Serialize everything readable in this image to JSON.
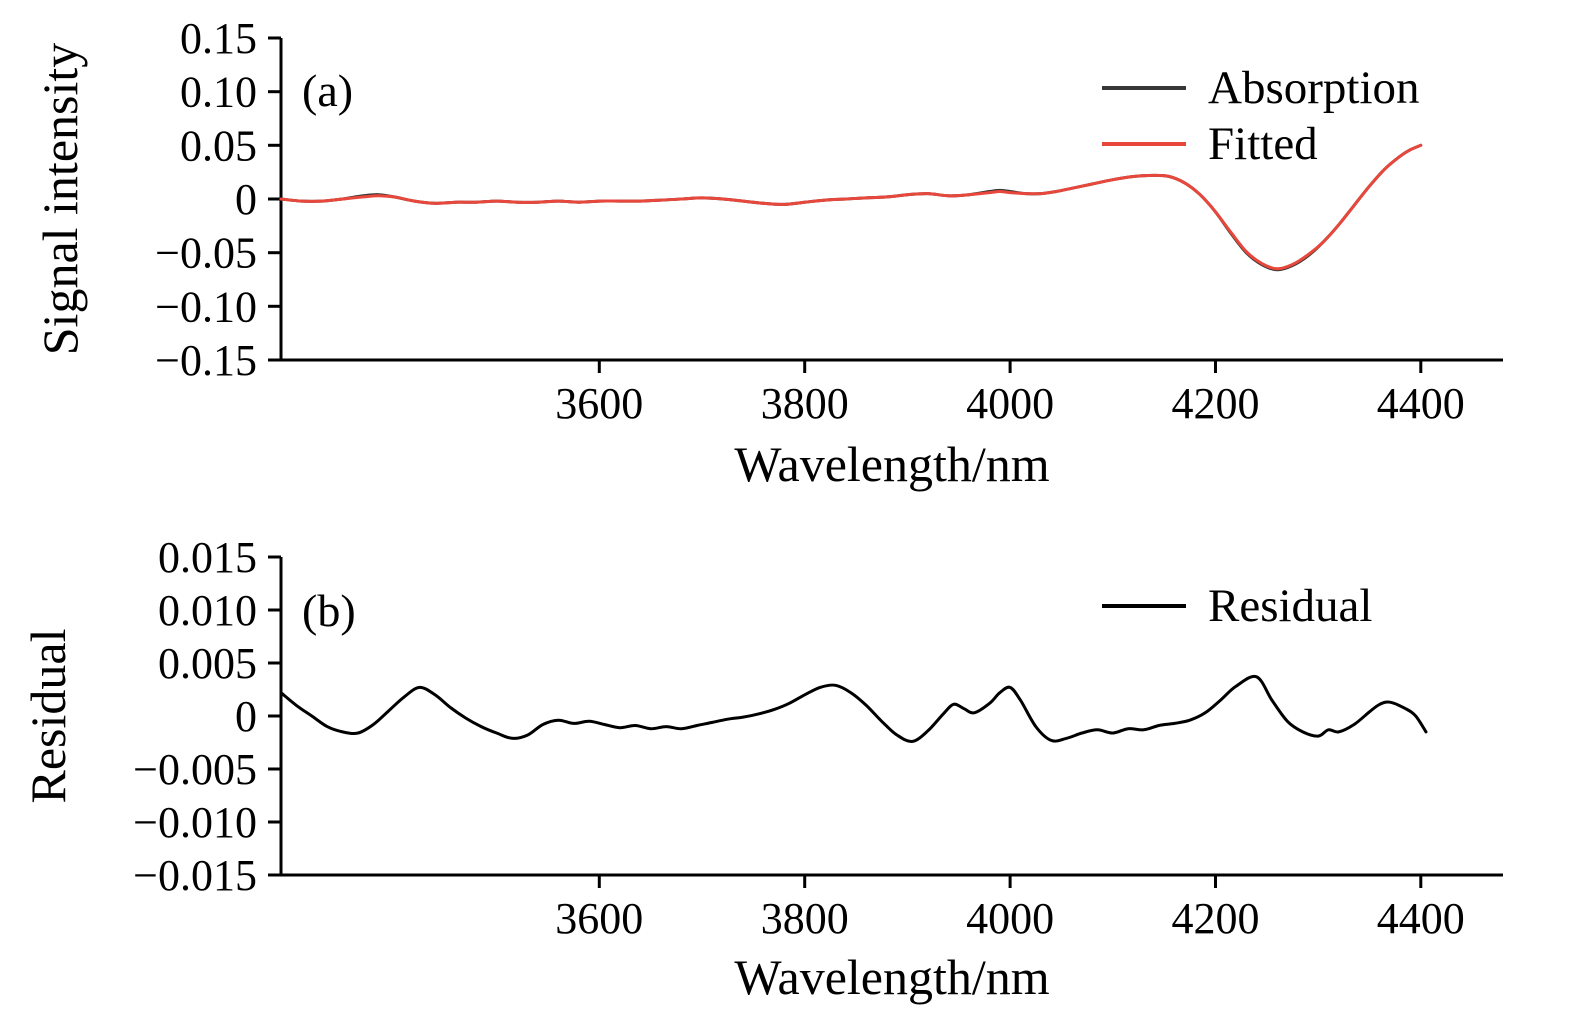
{
  "page": {
    "background": "#ffffff"
  },
  "chart_data": [
    {
      "type": "line",
      "name": "absorption-panel",
      "panel_label": "(a)",
      "xlabel": "Wavelength/nm",
      "ylabel": "Signal intensity",
      "xlim": [
        3290,
        4480
      ],
      "ylim": [
        -0.15,
        0.15
      ],
      "grid": false,
      "xticks": [
        3600,
        3800,
        4000,
        4200,
        4400
      ],
      "xtick_labels": [
        "3600",
        "3800",
        "4000",
        "4200",
        "4400"
      ],
      "yticks": [
        0.15,
        0.1,
        0.05,
        0,
        -0.05,
        -0.1,
        -0.15
      ],
      "ytick_labels": [
        "0.15",
        "0.10",
        "0.05",
        "0",
        "−0.05",
        "−0.10",
        "−0.15"
      ],
      "legend": {
        "position": "top-right",
        "entries": [
          {
            "label": "Absorption",
            "color": "#373737"
          },
          {
            "label": "Fitted",
            "color": "#e8473c"
          }
        ]
      },
      "x": [
        3290,
        3310,
        3330,
        3350,
        3370,
        3385,
        3400,
        3420,
        3440,
        3460,
        3480,
        3500,
        3520,
        3540,
        3560,
        3580,
        3600,
        3620,
        3640,
        3660,
        3680,
        3700,
        3720,
        3740,
        3760,
        3780,
        3800,
        3820,
        3840,
        3860,
        3880,
        3900,
        3920,
        3940,
        3960,
        3980,
        3990,
        4000,
        4015,
        4030,
        4045,
        4060,
        4080,
        4100,
        4120,
        4140,
        4155,
        4170,
        4185,
        4200,
        4215,
        4230,
        4245,
        4260,
        4275,
        4290,
        4305,
        4320,
        4335,
        4350,
        4365,
        4380,
        4390,
        4400
      ],
      "series": [
        {
          "name": "Absorption",
          "color": "#373737",
          "values": [
            0.0,
            -0.002,
            -0.002,
            0.0,
            0.003,
            0.004,
            0.002,
            -0.002,
            -0.004,
            -0.003,
            -0.003,
            -0.002,
            -0.003,
            -0.003,
            -0.002,
            -0.003,
            -0.002,
            -0.002,
            -0.002,
            -0.001,
            0.0,
            0.001,
            0.0,
            -0.002,
            -0.004,
            -0.005,
            -0.003,
            -0.001,
            0.0,
            0.001,
            0.002,
            0.004,
            0.005,
            0.003,
            0.004,
            0.007,
            0.008,
            0.007,
            0.005,
            0.005,
            0.007,
            0.01,
            0.014,
            0.018,
            0.021,
            0.022,
            0.021,
            0.015,
            0.004,
            -0.012,
            -0.032,
            -0.05,
            -0.061,
            -0.066,
            -0.062,
            -0.053,
            -0.04,
            -0.024,
            -0.006,
            0.012,
            0.028,
            0.04,
            0.046,
            0.05
          ]
        },
        {
          "name": "Fitted",
          "color": "#e8473c",
          "values": [
            0.0,
            -0.002,
            -0.002,
            0.0,
            0.002,
            0.003,
            0.002,
            -0.002,
            -0.004,
            -0.003,
            -0.003,
            -0.002,
            -0.003,
            -0.003,
            -0.002,
            -0.003,
            -0.002,
            -0.002,
            -0.002,
            -0.001,
            0.0,
            0.001,
            0.0,
            -0.002,
            -0.004,
            -0.005,
            -0.003,
            -0.001,
            0.0,
            0.001,
            0.002,
            0.004,
            0.005,
            0.003,
            0.004,
            0.006,
            0.007,
            0.006,
            0.005,
            0.005,
            0.007,
            0.01,
            0.014,
            0.018,
            0.021,
            0.022,
            0.021,
            0.015,
            0.004,
            -0.012,
            -0.031,
            -0.049,
            -0.06,
            -0.065,
            -0.061,
            -0.052,
            -0.04,
            -0.024,
            -0.006,
            0.012,
            0.028,
            0.04,
            0.046,
            0.05
          ]
        }
      ]
    },
    {
      "type": "line",
      "name": "residual-panel",
      "panel_label": "(b)",
      "xlabel": "Wavelength/nm",
      "ylabel": "Residual",
      "xlim": [
        3290,
        4480
      ],
      "ylim": [
        -0.015,
        0.015
      ],
      "grid": false,
      "xticks": [
        3600,
        3800,
        4000,
        4200,
        4400
      ],
      "xtick_labels": [
        "3600",
        "3800",
        "4000",
        "4200",
        "4400"
      ],
      "yticks": [
        0.015,
        0.01,
        0.005,
        0,
        -0.005,
        -0.01,
        -0.015
      ],
      "ytick_labels": [
        "0.015",
        "0.010",
        "0.005",
        "0",
        "−0.005",
        "−0.010",
        "−0.015"
      ],
      "legend": {
        "position": "top-right",
        "entries": [
          {
            "label": "Residual",
            "color": "#000000"
          }
        ]
      },
      "x": [
        3290,
        3305,
        3320,
        3335,
        3350,
        3365,
        3380,
        3395,
        3410,
        3425,
        3440,
        3455,
        3470,
        3485,
        3500,
        3515,
        3530,
        3545,
        3560,
        3575,
        3590,
        3605,
        3620,
        3635,
        3650,
        3665,
        3680,
        3695,
        3710,
        3725,
        3740,
        3755,
        3770,
        3785,
        3800,
        3815,
        3830,
        3845,
        3860,
        3875,
        3890,
        3905,
        3920,
        3935,
        3945,
        3955,
        3965,
        3980,
        3990,
        4000,
        4010,
        4025,
        4040,
        4055,
        4070,
        4085,
        4100,
        4115,
        4130,
        4145,
        4160,
        4175,
        4190,
        4205,
        4220,
        4240,
        4255,
        4270,
        4285,
        4300,
        4310,
        4320,
        4335,
        4350,
        4360,
        4370,
        4385,
        4395,
        4405
      ],
      "series": [
        {
          "name": "Residual",
          "color": "#000000",
          "values": [
            0.0022,
            0.001,
            0.0,
            -0.001,
            -0.0015,
            -0.0016,
            -0.0008,
            0.0005,
            0.0018,
            0.0027,
            0.002,
            0.0008,
            -0.0002,
            -0.001,
            -0.0016,
            -0.0021,
            -0.0018,
            -0.0008,
            -0.0004,
            -0.0007,
            -0.0005,
            -0.0008,
            -0.0011,
            -0.0009,
            -0.0012,
            -0.001,
            -0.0012,
            -0.0009,
            -0.0006,
            -0.0003,
            -0.0001,
            0.0002,
            0.0006,
            0.0012,
            0.002,
            0.0027,
            0.0029,
            0.0022,
            0.001,
            -0.0005,
            -0.0018,
            -0.0024,
            -0.0014,
            0.0002,
            0.0011,
            0.0007,
            0.0003,
            0.0012,
            0.0022,
            0.0027,
            0.0015,
            -0.001,
            -0.0023,
            -0.0021,
            -0.0016,
            -0.0013,
            -0.0016,
            -0.0012,
            -0.0013,
            -0.0009,
            -0.0007,
            -0.0004,
            0.0003,
            0.0015,
            0.0028,
            0.0037,
            0.0015,
            -0.0005,
            -0.0015,
            -0.0019,
            -0.0013,
            -0.0015,
            -0.0008,
            0.0004,
            0.0011,
            0.0013,
            0.0007,
            0.0,
            -0.0015
          ]
        }
      ]
    }
  ]
}
